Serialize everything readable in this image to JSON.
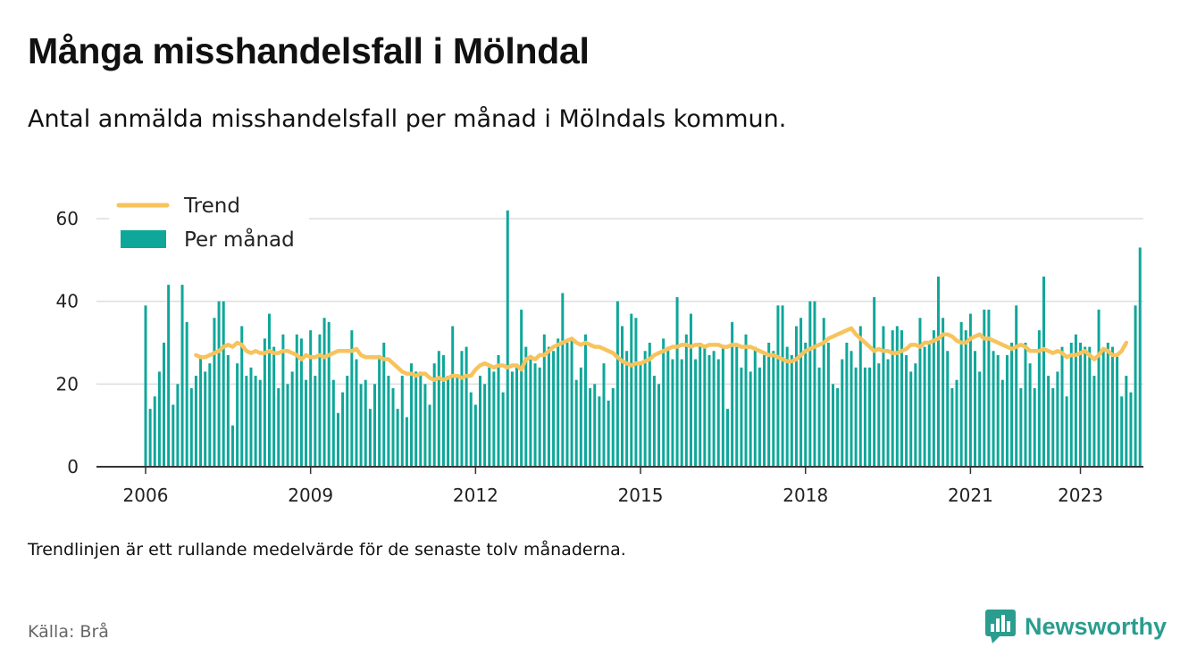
{
  "title": "Många misshandelsfall i Mölndal",
  "subtitle": "Antal anmälda misshandelsfall per månad i Mölndals kommun.",
  "footnote": "Trendlinjen är ett rullande medelvärde för de senaste tolv månaderna.",
  "source": "Källa: Brå",
  "brand": {
    "name": "Newsworthy",
    "icon": "newsworthy-logo-icon",
    "color": "#2a9d8f"
  },
  "colors": {
    "bar": "#0fa79a",
    "trend": "#f7c35c",
    "grid": "#dddddd",
    "axis": "#333333"
  },
  "chart_data": {
    "type": "bar",
    "title": "Många misshandelsfall i Mölndal",
    "subtitle": "Antal anmälda misshandelsfall per månad i Mölndals kommun.",
    "xlabel": "",
    "ylabel": "",
    "x_start": "2006-01",
    "x_ticks": [
      "2006",
      "2009",
      "2012",
      "2015",
      "2018",
      "2021",
      "2023"
    ],
    "x_tick_years": [
      2006,
      2009,
      2012,
      2015,
      2018,
      2021,
      2023
    ],
    "ylim": [
      0,
      60
    ],
    "y_ticks": [
      0,
      20,
      40,
      60
    ],
    "grid": true,
    "legend": "top-left",
    "series": [
      {
        "name": "Per månad",
        "type": "bar",
        "values": [
          39,
          14,
          17,
          23,
          30,
          44,
          15,
          20,
          44,
          35,
          19,
          22,
          27,
          23,
          25,
          36,
          40,
          40,
          27,
          10,
          25,
          34,
          22,
          24,
          22,
          21,
          31,
          37,
          29,
          19,
          32,
          20,
          23,
          32,
          31,
          21,
          33,
          22,
          32,
          36,
          35,
          21,
          13,
          18,
          22,
          33,
          26,
          20,
          21,
          14,
          20,
          27,
          30,
          22,
          19,
          14,
          22,
          12,
          25,
          23,
          23,
          20,
          15,
          25,
          28,
          27,
          22,
          34,
          22,
          28,
          29,
          18,
          15,
          22,
          20,
          24,
          23,
          27,
          18,
          62,
          23,
          24,
          38,
          29,
          27,
          25,
          24,
          32,
          29,
          28,
          31,
          42,
          30,
          31,
          21,
          24,
          32,
          19,
          20,
          17,
          25,
          16,
          19,
          40,
          34,
          28,
          37,
          36,
          25,
          28,
          30,
          22,
          20,
          31,
          29,
          26,
          41,
          26,
          32,
          37,
          26,
          30,
          29,
          27,
          28,
          26,
          29,
          14,
          35,
          29,
          24,
          32,
          23,
          29,
          24,
          27,
          30,
          28,
          39,
          39,
          29,
          27,
          34,
          36,
          30,
          40,
          40,
          24,
          36,
          30,
          20,
          19,
          26,
          30,
          28,
          24,
          34,
          24,
          24,
          41,
          25,
          34,
          26,
          33,
          34,
          33,
          27,
          23,
          25,
          36,
          29,
          30,
          33,
          46,
          36,
          28,
          19,
          21,
          35,
          33,
          37,
          28,
          23,
          38,
          38,
          28,
          27,
          21,
          27,
          30,
          39,
          19,
          30,
          25,
          19,
          33,
          46,
          22,
          19,
          23,
          29,
          17,
          30,
          32,
          30,
          29,
          29,
          22,
          38,
          28,
          30,
          29,
          27,
          17,
          22,
          18,
          39,
          53
        ]
      },
      {
        "name": "Trend",
        "type": "line",
        "start_index": 11,
        "values": [
          27.0,
          26.5,
          26.5,
          27.0,
          27.5,
          28.0,
          29.0,
          29.5,
          29.0,
          30.0,
          29.5,
          28.0,
          27.5,
          28.0,
          27.5,
          27.5,
          28.0,
          27.5,
          27.5,
          28.0,
          28.0,
          27.5,
          27.0,
          26.0,
          27.0,
          26.5,
          26.5,
          27.0,
          26.5,
          27.0,
          27.5,
          28.0,
          28.0,
          28.0,
          28.0,
          28.5,
          27.0,
          26.5,
          26.5,
          26.5,
          26.5,
          26.0,
          26.0,
          25.0,
          24.0,
          23.0,
          22.5,
          22.5,
          22.0,
          22.5,
          22.5,
          21.5,
          21.0,
          21.5,
          21.0,
          21.5,
          22.0,
          22.0,
          21.5,
          22.0,
          22.0,
          23.5,
          24.5,
          25.0,
          24.5,
          24.0,
          24.5,
          24.5,
          24.0,
          24.5,
          24.5,
          23.5,
          26.0,
          26.5,
          26.0,
          27.0,
          27.0,
          28.0,
          29.0,
          29.5,
          30.0,
          30.5,
          31.0,
          30.0,
          29.5,
          30.0,
          29.5,
          29.0,
          29.0,
          28.5,
          28.0,
          27.5,
          26.5,
          25.5,
          25.0,
          24.5,
          25.0,
          25.0,
          25.5,
          26.0,
          27.0,
          27.5,
          28.0,
          28.5,
          29.0,
          29.0,
          29.5,
          29.5,
          29.0,
          29.5,
          29.5,
          29.0,
          29.5,
          29.5,
          29.5,
          29.0,
          29.0,
          29.5,
          29.5,
          29.0,
          29.0,
          29.0,
          28.5,
          28.0,
          27.5,
          27.0,
          27.0,
          26.5,
          26.0,
          25.5,
          25.5,
          26.0,
          27.0,
          28.0,
          28.5,
          29.0,
          29.5,
          30.0,
          31.0,
          31.5,
          32.0,
          32.5,
          33.0,
          33.5,
          32.0,
          31.0,
          30.0,
          29.0,
          28.0,
          28.5,
          28.0,
          28.0,
          27.5,
          27.5,
          28.0,
          28.5,
          29.5,
          29.5,
          29.0,
          30.0,
          30.0,
          30.5,
          31.0,
          32.0,
          32.0,
          31.5,
          30.5,
          30.0,
          30.0,
          31.0,
          31.5,
          32.0,
          31.0,
          31.0,
          30.5,
          30.0,
          29.5,
          29.0,
          28.5,
          29.0,
          29.5,
          29.0,
          28.0,
          28.0,
          28.0,
          28.5,
          28.0,
          27.5,
          28.0,
          27.5,
          26.5,
          27.0,
          27.0,
          27.5,
          28.0,
          27.0,
          26.0,
          27.0,
          28.5,
          28.0,
          27.0,
          27.0,
          28.0,
          30.0
        ]
      }
    ]
  }
}
